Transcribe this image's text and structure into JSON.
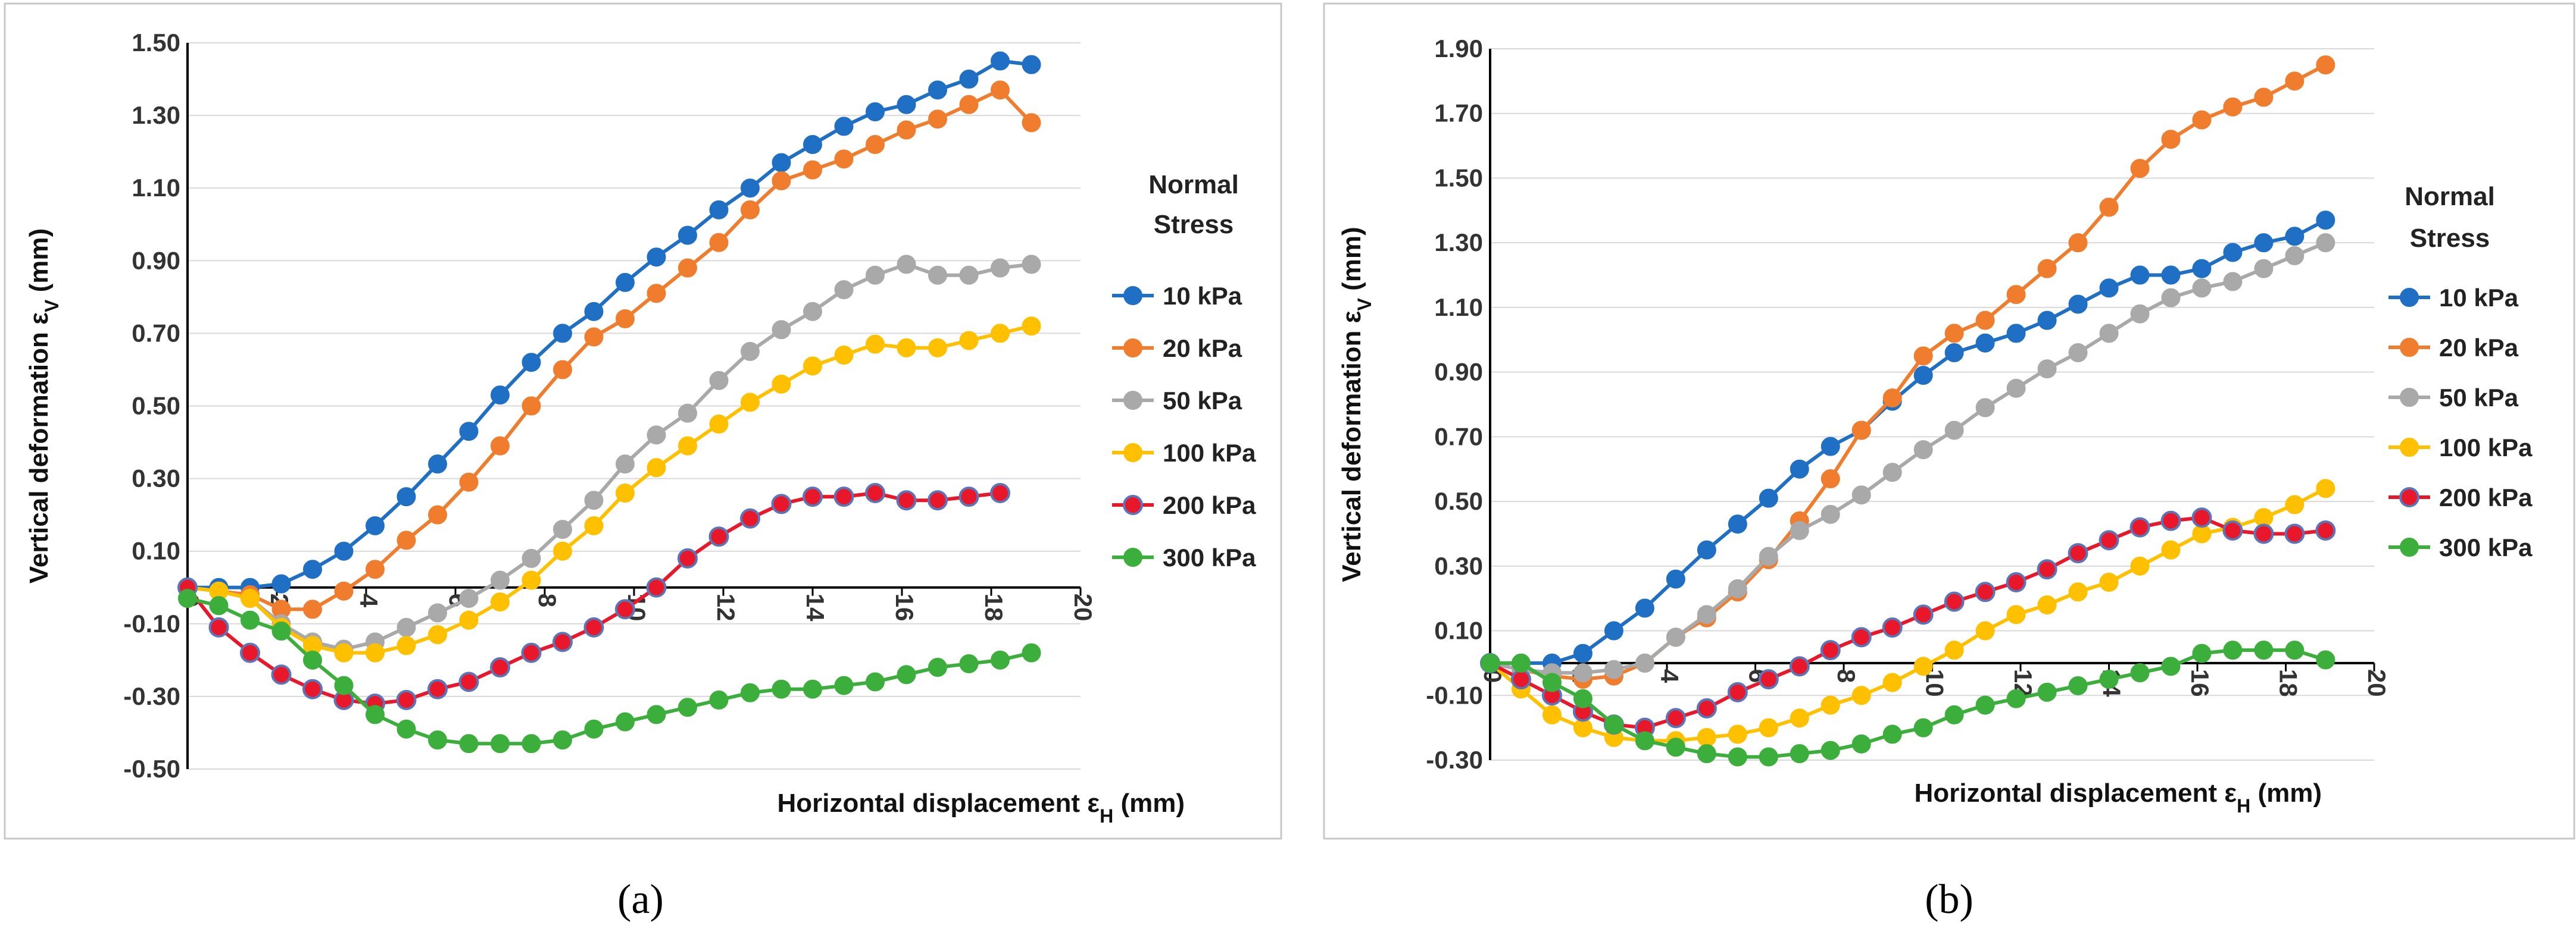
{
  "chart_data": [
    {
      "panel": "a",
      "type": "line",
      "caption": "(a)",
      "xlabel": "Horizontal displacement ε",
      "xlabel_sub": "H",
      "xlabel_unit": " (mm)",
      "ylabel": "Vertical deformation ε",
      "ylabel_sub": "V",
      "ylabel_unit": " (mm)",
      "xlim": [
        0,
        20
      ],
      "ylim": [
        -0.5,
        1.5
      ],
      "xticks": [
        0,
        2,
        4,
        6,
        8,
        10,
        12,
        14,
        16,
        18,
        20
      ],
      "yticks": [
        -0.5,
        -0.3,
        -0.1,
        0.1,
        0.3,
        0.5,
        0.7,
        0.9,
        1.1,
        1.3,
        1.5
      ],
      "ytick_labels": [
        "-0.50",
        "-0.30",
        "-0.10",
        "0.10",
        "0.30",
        "0.50",
        "0.70",
        "0.90",
        "1.10",
        "1.30",
        "1.50"
      ],
      "legend": {
        "title_line1": "Normal",
        "title_line2": "Stress",
        "position": "right"
      },
      "series": [
        {
          "name": "10 kPa",
          "color": "#1f6fc5",
          "x": [
            0,
            0.7,
            1.4,
            2.1,
            2.8,
            3.5,
            4.2,
            4.9,
            5.6,
            6.3,
            7.0,
            7.7,
            8.4,
            9.1,
            9.8,
            10.5,
            11.2,
            11.9,
            12.6,
            13.3,
            14.0,
            14.7,
            15.4,
            16.1,
            16.8,
            17.5,
            18.2,
            18.9
          ],
          "y": [
            0,
            0,
            0,
            0.01,
            0.05,
            0.1,
            0.17,
            0.25,
            0.34,
            0.43,
            0.53,
            0.62,
            0.7,
            0.76,
            0.84,
            0.91,
            0.97,
            1.04,
            1.1,
            1.17,
            1.22,
            1.27,
            1.31,
            1.33,
            1.37,
            1.4,
            1.45,
            1.44
          ]
        },
        {
          "name": "20 kPa",
          "color": "#f07d2e",
          "x": [
            0,
            0.7,
            1.4,
            2.1,
            2.8,
            3.5,
            4.2,
            4.9,
            5.6,
            6.3,
            7.0,
            7.7,
            8.4,
            9.1,
            9.8,
            10.5,
            11.2,
            11.9,
            12.6,
            13.3,
            14.0,
            14.7,
            15.4,
            16.1,
            16.8,
            17.5,
            18.2,
            18.9
          ],
          "y": [
            0,
            -0.01,
            -0.02,
            -0.06,
            -0.06,
            -0.01,
            0.05,
            0.13,
            0.2,
            0.29,
            0.39,
            0.5,
            0.6,
            0.69,
            0.74,
            0.81,
            0.88,
            0.95,
            1.04,
            1.12,
            1.15,
            1.18,
            1.22,
            1.26,
            1.29,
            1.33,
            1.37,
            1.28
          ]
        },
        {
          "name": "50 kPa",
          "color": "#a9a9a9",
          "x": [
            0,
            0.7,
            1.4,
            2.1,
            2.8,
            3.5,
            4.2,
            4.9,
            5.6,
            6.3,
            7.0,
            7.7,
            8.4,
            9.1,
            9.8,
            10.5,
            11.2,
            11.9,
            12.6,
            13.3,
            14.0,
            14.7,
            15.4,
            16.1,
            16.8,
            17.5,
            18.2,
            18.9
          ],
          "y": [
            0,
            -0.01,
            -0.03,
            -0.1,
            -0.15,
            -0.17,
            -0.15,
            -0.11,
            -0.07,
            -0.03,
            0.02,
            0.08,
            0.16,
            0.24,
            0.34,
            0.42,
            0.48,
            0.57,
            0.65,
            0.71,
            0.76,
            0.82,
            0.86,
            0.89,
            0.86,
            0.86,
            0.88,
            0.89
          ]
        },
        {
          "name": "100 kPa",
          "color": "#ffc000",
          "x": [
            0,
            0.7,
            1.4,
            2.1,
            2.8,
            3.5,
            4.2,
            4.9,
            5.6,
            6.3,
            7.0,
            7.7,
            8.4,
            9.1,
            9.8,
            10.5,
            11.2,
            11.9,
            12.6,
            13.3,
            14.0,
            14.7,
            15.4,
            16.1,
            16.8,
            17.5,
            18.2,
            18.9
          ],
          "y": [
            0,
            -0.01,
            -0.03,
            -0.11,
            -0.16,
            -0.18,
            -0.18,
            -0.16,
            -0.13,
            -0.09,
            -0.04,
            0.02,
            0.1,
            0.17,
            0.26,
            0.33,
            0.39,
            0.45,
            0.51,
            0.56,
            0.61,
            0.64,
            0.67,
            0.66,
            0.66,
            0.68,
            0.7,
            0.72
          ]
        },
        {
          "name": "200 kPa",
          "color": "#e8182a",
          "marker_fill": "#e8182a",
          "marker_edge": "#5a76b8",
          "x": [
            0,
            0.7,
            1.4,
            2.1,
            2.8,
            3.5,
            4.2,
            4.9,
            5.6,
            6.3,
            7.0,
            7.7,
            8.4,
            9.1,
            9.8,
            10.5,
            11.2,
            11.9,
            12.6,
            13.3,
            14.0,
            14.7,
            15.4,
            16.1,
            16.8,
            17.5,
            18.2
          ],
          "y": [
            0,
            -0.11,
            -0.18,
            -0.24,
            -0.28,
            -0.31,
            -0.32,
            -0.31,
            -0.28,
            -0.26,
            -0.22,
            -0.18,
            -0.15,
            -0.11,
            -0.06,
            0,
            0.08,
            0.14,
            0.19,
            0.23,
            0.25,
            0.25,
            0.26,
            0.24,
            0.24,
            0.25,
            0.26
          ]
        },
        {
          "name": "300 kPa",
          "color": "#3cae3c",
          "x": [
            0,
            0.7,
            1.4,
            2.1,
            2.8,
            3.5,
            4.2,
            4.9,
            5.6,
            6.3,
            7.0,
            7.7,
            8.4,
            9.1,
            9.8,
            10.5,
            11.2,
            11.9,
            12.6,
            13.3,
            14.0,
            14.7,
            15.4,
            16.1,
            16.8,
            17.5,
            18.2,
            18.9
          ],
          "y": [
            -0.03,
            -0.05,
            -0.09,
            -0.12,
            -0.2,
            -0.27,
            -0.35,
            -0.39,
            -0.42,
            -0.43,
            -0.43,
            -0.43,
            -0.42,
            -0.39,
            -0.37,
            -0.35,
            -0.33,
            -0.31,
            -0.29,
            -0.28,
            -0.28,
            -0.27,
            -0.26,
            -0.24,
            -0.22,
            -0.21,
            -0.2,
            -0.18
          ]
        }
      ]
    },
    {
      "panel": "b",
      "type": "line",
      "caption": "(b)",
      "xlabel": "Horizontal displacement ε",
      "xlabel_sub": "H",
      "xlabel_unit": " (mm)",
      "ylabel": "Vertical deformation ε",
      "ylabel_sub": "V",
      "ylabel_unit": " (mm)",
      "xlim": [
        0,
        20
      ],
      "ylim": [
        -0.3,
        1.9
      ],
      "xticks": [
        0,
        2,
        4,
        6,
        8,
        10,
        12,
        14,
        16,
        18,
        20
      ],
      "yticks": [
        -0.3,
        -0.1,
        0.1,
        0.3,
        0.5,
        0.7,
        0.9,
        1.1,
        1.3,
        1.5,
        1.7,
        1.9
      ],
      "ytick_labels": [
        "-0.30",
        "-0.10",
        "0.10",
        "0.30",
        "0.50",
        "0.70",
        "0.90",
        "1.10",
        "1.30",
        "1.50",
        "1.70",
        "1.90"
      ],
      "legend": {
        "title_line1": "Normal",
        "title_line2": "Stress",
        "position": "right"
      },
      "series": [
        {
          "name": "10 kPa",
          "color": "#1f6fc5",
          "x": [
            0,
            0.7,
            1.4,
            2.1,
            2.8,
            3.5,
            4.2,
            4.9,
            5.6,
            6.3,
            7.0,
            7.7,
            8.4,
            9.1,
            9.8,
            10.5,
            11.2,
            11.9,
            12.6,
            13.3,
            14.0,
            14.7,
            15.4,
            16.1,
            16.8,
            17.5,
            18.2,
            18.9
          ],
          "y": [
            0,
            0,
            0,
            0.03,
            0.1,
            0.17,
            0.26,
            0.35,
            0.43,
            0.51,
            0.6,
            0.67,
            0.72,
            0.81,
            0.89,
            0.96,
            0.99,
            1.02,
            1.06,
            1.11,
            1.16,
            1.2,
            1.2,
            1.22,
            1.27,
            1.3,
            1.32,
            1.37
          ]
        },
        {
          "name": "20 kPa",
          "color": "#f07d2e",
          "x": [
            0,
            0.7,
            1.4,
            2.1,
            2.8,
            3.5,
            4.2,
            4.9,
            5.6,
            6.3,
            7.0,
            7.7,
            8.4,
            9.1,
            9.8,
            10.5,
            11.2,
            11.9,
            12.6,
            13.3,
            14.0,
            14.7,
            15.4,
            16.1,
            16.8,
            17.5,
            18.2,
            18.9
          ],
          "y": [
            0,
            -0.02,
            -0.04,
            -0.05,
            -0.04,
            0,
            0.08,
            0.14,
            0.22,
            0.32,
            0.44,
            0.57,
            0.72,
            0.82,
            0.95,
            1.02,
            1.06,
            1.14,
            1.22,
            1.3,
            1.41,
            1.53,
            1.62,
            1.68,
            1.72,
            1.75,
            1.8,
            1.85
          ]
        },
        {
          "name": "50 kPa",
          "color": "#a9a9a9",
          "x": [
            0,
            0.7,
            1.4,
            2.1,
            2.8,
            3.5,
            4.2,
            4.9,
            5.6,
            6.3,
            7.0,
            7.7,
            8.4,
            9.1,
            9.8,
            10.5,
            11.2,
            11.9,
            12.6,
            13.3,
            14.0,
            14.7,
            15.4,
            16.1,
            16.8,
            17.5,
            18.2,
            18.9
          ],
          "y": [
            0,
            -0.02,
            -0.03,
            -0.03,
            -0.02,
            0,
            0.08,
            0.15,
            0.23,
            0.33,
            0.41,
            0.46,
            0.52,
            0.59,
            0.66,
            0.72,
            0.79,
            0.85,
            0.91,
            0.96,
            1.02,
            1.08,
            1.13,
            1.16,
            1.18,
            1.22,
            1.26,
            1.3
          ]
        },
        {
          "name": "100 kPa",
          "color": "#ffc000",
          "x": [
            0,
            0.7,
            1.4,
            2.1,
            2.8,
            3.5,
            4.2,
            4.9,
            5.6,
            6.3,
            7.0,
            7.7,
            8.4,
            9.1,
            9.8,
            10.5,
            11.2,
            11.9,
            12.6,
            13.3,
            14.0,
            14.7,
            15.4,
            16.1,
            16.8,
            17.5,
            18.2,
            18.9
          ],
          "y": [
            0,
            -0.08,
            -0.16,
            -0.2,
            -0.23,
            -0.24,
            -0.24,
            -0.23,
            -0.22,
            -0.2,
            -0.17,
            -0.13,
            -0.1,
            -0.06,
            -0.01,
            0.04,
            0.1,
            0.15,
            0.18,
            0.22,
            0.25,
            0.3,
            0.35,
            0.4,
            0.42,
            0.45,
            0.49,
            0.54
          ]
        },
        {
          "name": "200 kPa",
          "color": "#e8182a",
          "marker_fill": "#e8182a",
          "marker_edge": "#5a76b8",
          "x": [
            0,
            0.7,
            1.4,
            2.1,
            2.8,
            3.5,
            4.2,
            4.9,
            5.6,
            6.3,
            7.0,
            7.7,
            8.4,
            9.1,
            9.8,
            10.5,
            11.2,
            11.9,
            12.6,
            13.3,
            14.0,
            14.7,
            15.4,
            16.1,
            16.8,
            17.5,
            18.2,
            18.9
          ],
          "y": [
            0,
            -0.05,
            -0.1,
            -0.15,
            -0.19,
            -0.2,
            -0.17,
            -0.14,
            -0.09,
            -0.05,
            -0.01,
            0.04,
            0.08,
            0.11,
            0.15,
            0.19,
            0.22,
            0.25,
            0.29,
            0.34,
            0.38,
            0.42,
            0.44,
            0.45,
            0.41,
            0.4,
            0.4,
            0.41
          ]
        },
        {
          "name": "300 kPa",
          "color": "#3cae3c",
          "x": [
            0,
            0.7,
            1.4,
            2.1,
            2.8,
            3.5,
            4.2,
            4.9,
            5.6,
            6.3,
            7.0,
            7.7,
            8.4,
            9.1,
            9.8,
            10.5,
            11.2,
            11.9,
            12.6,
            13.3,
            14.0,
            14.7,
            15.4,
            16.1,
            16.8,
            17.5,
            18.2,
            18.9
          ],
          "y": [
            0,
            0,
            -0.06,
            -0.11,
            -0.19,
            -0.24,
            -0.26,
            -0.28,
            -0.29,
            -0.29,
            -0.28,
            -0.27,
            -0.25,
            -0.22,
            -0.2,
            -0.16,
            -0.13,
            -0.11,
            -0.09,
            -0.07,
            -0.05,
            -0.03,
            -0.01,
            0.03,
            0.04,
            0.04,
            0.04,
            0.01
          ]
        }
      ]
    }
  ]
}
